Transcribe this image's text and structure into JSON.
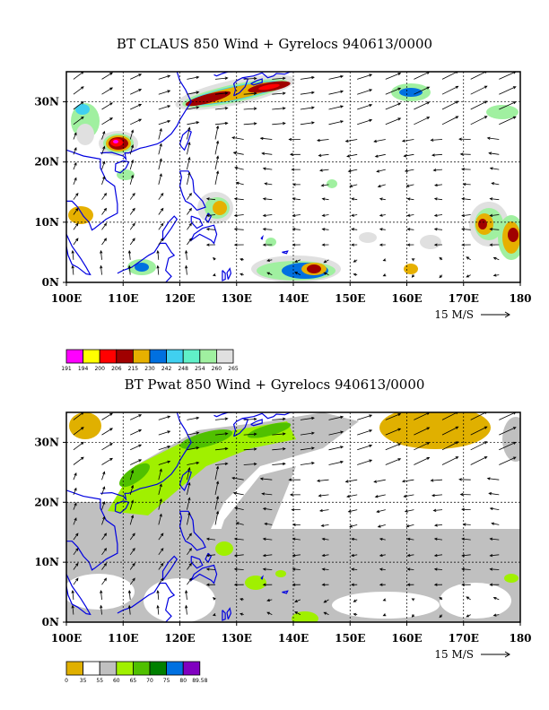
{
  "panels": [
    {
      "title": "BT CLAUS 850 Wind + Gyrelocs 940613/0000",
      "lon_labels": [
        "100E",
        "110E",
        "120E",
        "130E",
        "140E",
        "150E",
        "160E",
        "170E",
        "180"
      ],
      "lat_labels": [
        "0N",
        "10N",
        "20N",
        "30N"
      ],
      "wind_scale_label": "15 M/S",
      "colorbar": {
        "colors": [
          "#ff00ff",
          "#ffff00",
          "#ff0000",
          "#a00000",
          "#e6b000",
          "#0070e0",
          "#40d0f0",
          "#60f0c8",
          "#a0f0a0",
          "#e0e0e0"
        ],
        "labels": [
          "191",
          "194",
          "200",
          "206",
          "215",
          "230",
          "242",
          "248",
          "254",
          "260",
          "265"
        ]
      }
    },
    {
      "title": "BT Pwat 850 Wind + Gyrelocs 940613/0000",
      "lon_labels": [
        "100E",
        "110E",
        "120E",
        "130E",
        "140E",
        "150E",
        "160E",
        "170E",
        "180"
      ],
      "lat_labels": [
        "0N",
        "10N",
        "20N",
        "30N"
      ],
      "wind_scale_label": "15 M/S",
      "colorbar": {
        "colors": [
          "#e0b000",
          "#ffffff",
          "#c0c0c0",
          "#a0f000",
          "#50c000",
          "#008000",
          "#0070e0",
          "#8000c0"
        ],
        "labels": [
          "0",
          "35",
          "55",
          "60",
          "65",
          "70",
          "75",
          "80",
          "89.58"
        ]
      }
    }
  ],
  "map_extent": {
    "lon": [
      100,
      180
    ],
    "lat": [
      0,
      35
    ]
  },
  "colors": {
    "coastline": "#0000e0",
    "grid": "#000000"
  }
}
